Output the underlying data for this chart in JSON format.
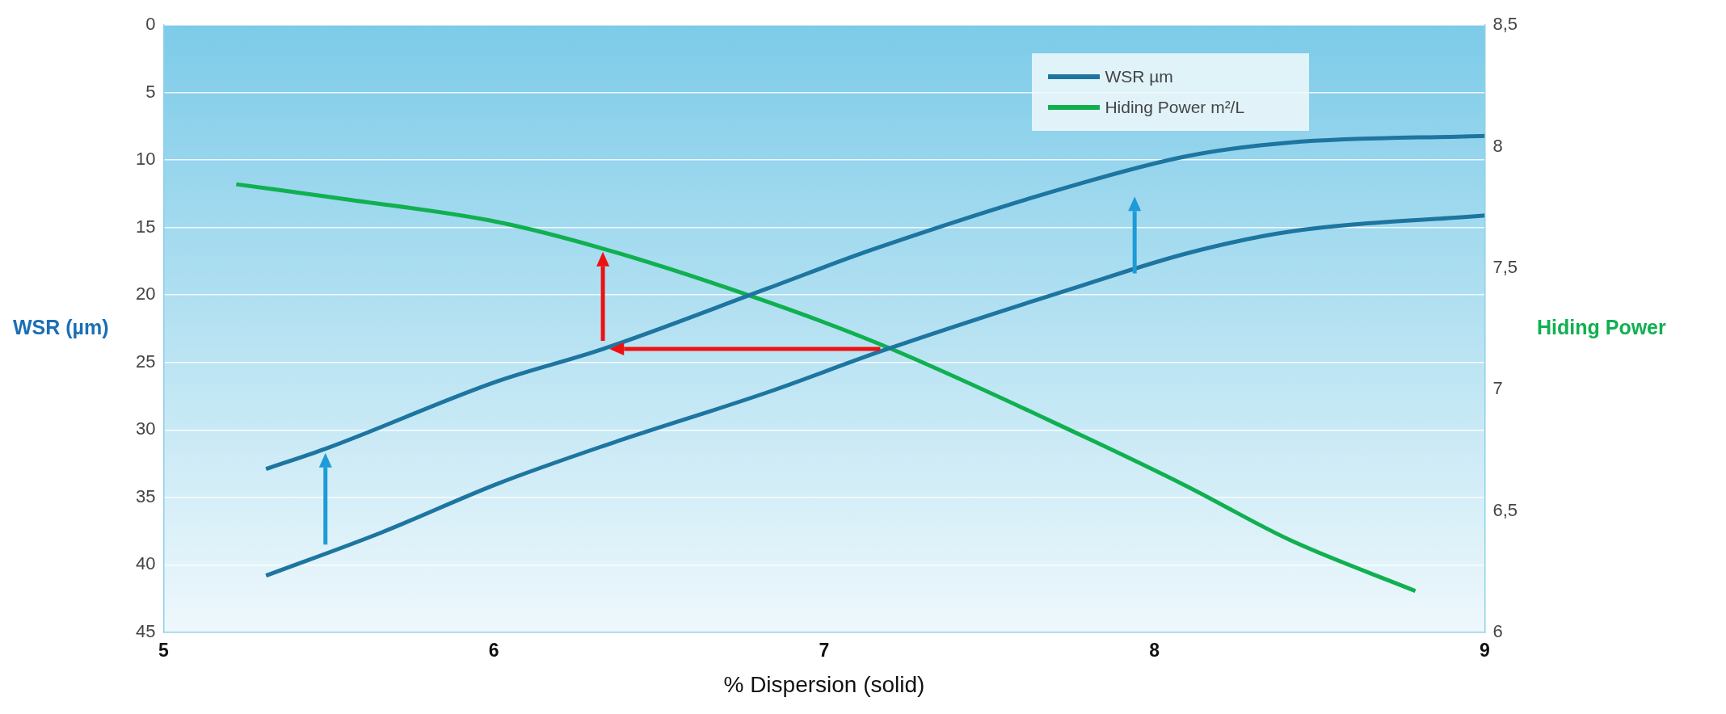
{
  "chart_data": {
    "type": "line",
    "xlabel": "% Dispersion (solid)",
    "ylabel": "WSR (µm)",
    "y2label": "Hiding Power",
    "xlim": [
      5,
      9
    ],
    "xticks": [
      5,
      6,
      7,
      8,
      9
    ],
    "ylim": [
      45,
      0
    ],
    "yticks": [
      0,
      5,
      10,
      15,
      20,
      25,
      30,
      35,
      40,
      45
    ],
    "y2lim": [
      6,
      8.5
    ],
    "y2ticks": [
      6,
      {
        "value": 6.5,
        "label": "6,5"
      },
      7,
      {
        "value": 7.5,
        "label": "7,5"
      },
      8,
      {
        "value": 8.5,
        "label": "8,5"
      }
    ],
    "grid": "y",
    "legend": "top right",
    "marker": "none",
    "line_style": "solid",
    "series": [
      {
        "name": "WSR µm",
        "color": "#1d75a0",
        "x": [
          5.31,
          5.49,
          6.01,
          6.33,
          6.83,
          7.15,
          7.78,
          8.1,
          8.41,
          9
        ],
        "values": [
          32.9,
          31.4,
          26.4,
          24.0,
          19.5,
          16.6,
          11.7,
          9.7,
          8.7,
          8.2
        ]
      },
      {
        "color": "#1d75a0",
        "x": [
          5.31,
          5.66,
          6.01,
          6.33,
          6.83,
          7.18,
          7.78,
          8.1,
          8.41,
          9
        ],
        "values": [
          40.8,
          37.6,
          34.0,
          31.2,
          27.2,
          24.1,
          19.3,
          16.9,
          15.3,
          14.1
        ]
      },
      {
        "name": "Hiding Power m²/L",
        "color": "#10b050",
        "axis": "y2",
        "x": [
          5.22,
          5.57,
          6.01,
          6.33,
          6.83,
          7.18,
          7.78,
          8.1,
          8.41,
          8.79
        ],
        "values": [
          7.845,
          7.78,
          7.69,
          7.58,
          7.36,
          7.18,
          6.81,
          6.6,
          6.38,
          6.17
        ]
      }
    ]
  }
}
